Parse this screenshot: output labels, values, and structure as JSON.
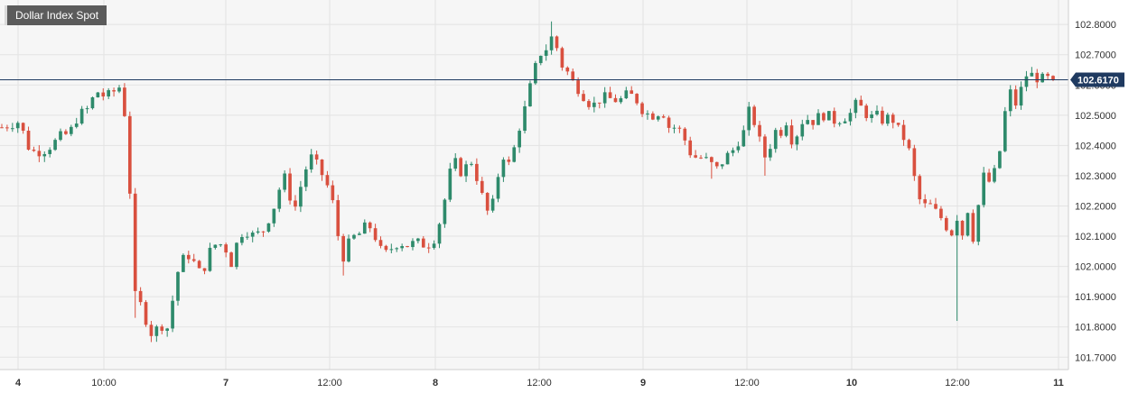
{
  "title": "Dollar Index Spot",
  "colors": {
    "up": "#2e8a6b",
    "down": "#d9503f",
    "grid": "#e3e3e3",
    "background": "#f6f6f6",
    "last_line": "#1f3a60",
    "axis_text": "#333333",
    "title_bg": "#5b5b5b"
  },
  "chart_data": {
    "type": "candlestick",
    "title": "Dollar Index Spot",
    "xlabel": "",
    "ylabel": "",
    "ylim": [
      101.68,
      102.86
    ],
    "grid": true,
    "y_ticks": [
      "102.8000",
      "102.7000",
      "102.6000",
      "102.5000",
      "102.4000",
      "102.3000",
      "102.2000",
      "102.1000",
      "102.0000",
      "101.9000",
      "101.8000",
      "101.7000"
    ],
    "x_ticks": [
      {
        "label": "4",
        "day": true
      },
      {
        "label": "10:00",
        "day": false
      },
      {
        "label": "7",
        "day": true
      },
      {
        "label": "12:00",
        "day": false
      },
      {
        "label": "8",
        "day": true
      },
      {
        "label": "12:00",
        "day": false
      },
      {
        "label": "9",
        "day": true
      },
      {
        "label": "12:00",
        "day": false
      },
      {
        "label": "10",
        "day": true
      },
      {
        "label": "12:00",
        "day": false
      },
      {
        "label": "11",
        "day": true
      }
    ],
    "last_value": 102.617,
    "last_label": "102.6170",
    "path_knots": [
      [
        0,
        102.46
      ],
      [
        10,
        102.47
      ],
      [
        20,
        102.48
      ],
      [
        28,
        102.4
      ],
      [
        35,
        102.38
      ],
      [
        45,
        102.38
      ],
      [
        55,
        102.4
      ],
      [
        65,
        102.43
      ],
      [
        75,
        102.44
      ],
      [
        85,
        102.5
      ],
      [
        95,
        102.52
      ],
      [
        105,
        102.58
      ],
      [
        115,
        102.56
      ],
      [
        125,
        102.58
      ],
      [
        133,
        102.6
      ],
      [
        137,
        102.48
      ],
      [
        140,
        102.3
      ],
      [
        144,
        102.2
      ],
      [
        148,
        101.9
      ],
      [
        152,
        101.85
      ],
      [
        156,
        101.9
      ],
      [
        160,
        101.82
      ],
      [
        165,
        101.78
      ],
      [
        170,
        101.78
      ],
      [
        175,
        101.82
      ],
      [
        180,
        101.79
      ],
      [
        185,
        101.8
      ],
      [
        190,
        101.9
      ],
      [
        195,
        101.98
      ],
      [
        200,
        102.02
      ],
      [
        206,
        102.04
      ],
      [
        212,
        102.02
      ],
      [
        218,
        101.98
      ],
      [
        225,
        102.0
      ],
      [
        232,
        102.06
      ],
      [
        240,
        102.08
      ],
      [
        248,
        102.06
      ],
      [
        256,
        102.0
      ],
      [
        262,
        102.1
      ],
      [
        270,
        102.12
      ],
      [
        280,
        102.1
      ],
      [
        290,
        102.12
      ],
      [
        298,
        102.17
      ],
      [
        305,
        102.22
      ],
      [
        312,
        102.31
      ],
      [
        318,
        102.25
      ],
      [
        324,
        102.18
      ],
      [
        330,
        102.25
      ],
      [
        338,
        102.33
      ],
      [
        345,
        102.37
      ],
      [
        350,
        102.33
      ],
      [
        356,
        102.3
      ],
      [
        362,
        102.26
      ],
      [
        368,
        102.2
      ],
      [
        374,
        102.08
      ],
      [
        380,
        102.02
      ],
      [
        386,
        102.09
      ],
      [
        392,
        102.1
      ],
      [
        398,
        102.11
      ],
      [
        405,
        102.14
      ],
      [
        412,
        102.12
      ],
      [
        418,
        102.06
      ],
      [
        425,
        102.04
      ],
      [
        432,
        102.06
      ],
      [
        440,
        102.08
      ],
      [
        450,
        102.07
      ],
      [
        460,
        102.08
      ],
      [
        470,
        102.07
      ],
      [
        478,
        102.08
      ],
      [
        484,
        102.13
      ],
      [
        490,
        102.2
      ],
      [
        496,
        102.3
      ],
      [
        502,
        102.35
      ],
      [
        508,
        102.31
      ],
      [
        515,
        102.33
      ],
      [
        522,
        102.35
      ],
      [
        528,
        102.28
      ],
      [
        534,
        102.22
      ],
      [
        540,
        102.17
      ],
      [
        546,
        102.22
      ],
      [
        552,
        102.33
      ],
      [
        558,
        102.38
      ],
      [
        564,
        102.32
      ],
      [
        570,
        102.42
      ],
      [
        576,
        102.48
      ],
      [
        582,
        102.54
      ],
      [
        588,
        102.62
      ],
      [
        594,
        102.68
      ],
      [
        600,
        102.72
      ],
      [
        606,
        102.72
      ],
      [
        612,
        102.78
      ],
      [
        617,
        102.7
      ],
      [
        622,
        102.66
      ],
      [
        628,
        102.64
      ],
      [
        635,
        102.6
      ],
      [
        642,
        102.58
      ],
      [
        648,
        102.55
      ],
      [
        655,
        102.53
      ],
      [
        662,
        102.55
      ],
      [
        670,
        102.56
      ],
      [
        678,
        102.55
      ],
      [
        686,
        102.55
      ],
      [
        694,
        102.57
      ],
      [
        702,
        102.56
      ],
      [
        710,
        102.52
      ],
      [
        718,
        102.5
      ],
      [
        725,
        102.5
      ],
      [
        732,
        102.52
      ],
      [
        740,
        102.46
      ],
      [
        748,
        102.46
      ],
      [
        755,
        102.44
      ],
      [
        762,
        102.38
      ],
      [
        770,
        102.36
      ],
      [
        778,
        102.36
      ],
      [
        786,
        102.34
      ],
      [
        794,
        102.32
      ],
      [
        802,
        102.36
      ],
      [
        810,
        102.38
      ],
      [
        818,
        102.42
      ],
      [
        824,
        102.45
      ],
      [
        830,
        102.53
      ],
      [
        836,
        102.46
      ],
      [
        842,
        102.4
      ],
      [
        848,
        102.35
      ],
      [
        854,
        102.42
      ],
      [
        860,
        102.46
      ],
      [
        866,
        102.44
      ],
      [
        872,
        102.5
      ],
      [
        878,
        102.38
      ],
      [
        884,
        102.47
      ],
      [
        892,
        102.49
      ],
      [
        900,
        102.48
      ],
      [
        908,
        102.5
      ],
      [
        916,
        102.5
      ],
      [
        924,
        102.48
      ],
      [
        932,
        102.49
      ],
      [
        940,
        102.5
      ],
      [
        948,
        102.54
      ],
      [
        955,
        102.52
      ],
      [
        962,
        102.49
      ],
      [
        970,
        102.5
      ],
      [
        978,
        102.48
      ],
      [
        986,
        102.5
      ],
      [
        992,
        102.46
      ],
      [
        998,
        102.44
      ],
      [
        1004,
        102.4
      ],
      [
        1010,
        102.35
      ],
      [
        1014,
        102.24
      ],
      [
        1018,
        102.22
      ],
      [
        1024,
        102.2
      ],
      [
        1030,
        102.2
      ],
      [
        1036,
        102.18
      ],
      [
        1042,
        102.16
      ],
      [
        1048,
        102.13
      ],
      [
        1054,
        102.11
      ],
      [
        1058,
        102.17
      ],
      [
        1062,
        102.15
      ],
      [
        1066,
        102.1
      ],
      [
        1070,
        102.24
      ],
      [
        1074,
        102.08
      ],
      [
        1078,
        102.1
      ],
      [
        1082,
        102.18
      ],
      [
        1086,
        102.26
      ],
      [
        1090,
        102.31
      ],
      [
        1095,
        102.28
      ],
      [
        1100,
        102.3
      ],
      [
        1105,
        102.36
      ],
      [
        1110,
        102.42
      ],
      [
        1114,
        102.55
      ],
      [
        1118,
        102.58
      ],
      [
        1122,
        102.55
      ],
      [
        1126,
        102.53
      ],
      [
        1130,
        102.58
      ],
      [
        1134,
        102.62
      ],
      [
        1138,
        102.64
      ],
      [
        1144,
        102.63
      ],
      [
        1150,
        102.62
      ],
      [
        1156,
        102.62
      ],
      [
        1162,
        102.62
      ],
      [
        1166,
        102.617
      ]
    ],
    "extreme_wicks": [
      {
        "index": 612,
        "high": 102.81,
        "low": 102.7
      },
      {
        "index": 1062,
        "high": 102.17,
        "low": 101.82
      },
      {
        "index": 148,
        "high": 101.96,
        "low": 101.83
      },
      {
        "index": 168,
        "high": 101.82,
        "low": 101.75
      },
      {
        "index": 378,
        "high": 102.06,
        "low": 101.97
      },
      {
        "index": 848,
        "high": 102.37,
        "low": 102.3
      },
      {
        "index": 790,
        "high": 102.36,
        "low": 102.29
      }
    ]
  }
}
